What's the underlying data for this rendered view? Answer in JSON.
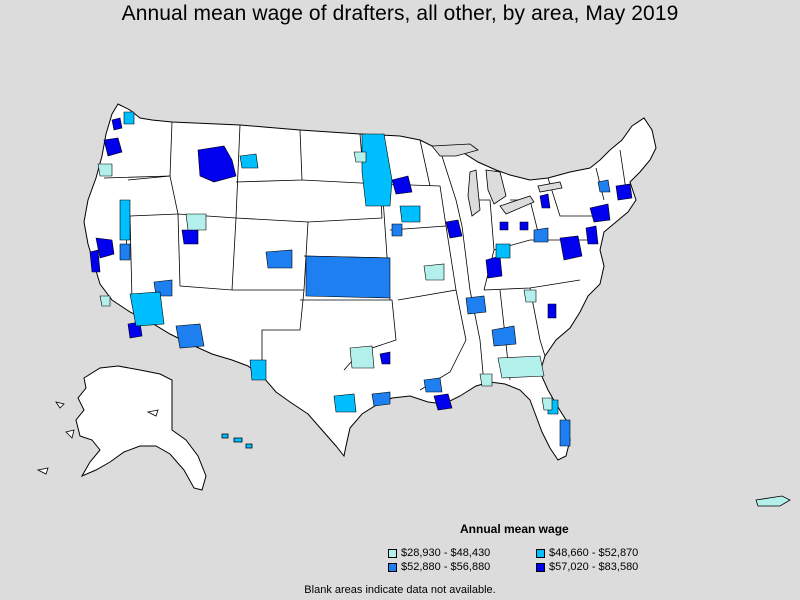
{
  "title": "Annual mean wage of drafters, all other, by area, May 2019",
  "legend": {
    "title": "Annual mean wage",
    "items": [
      {
        "label": "$28,930 - $48,430",
        "color": "#b3f0ec"
      },
      {
        "label": "$48,660 - $52,870",
        "color": "#00bfff"
      },
      {
        "label": "$52,880 - $56,880",
        "color": "#1e7ff0"
      },
      {
        "label": "$57,020 - $83,580",
        "color": "#0000ee"
      }
    ]
  },
  "footnote": "Blank areas indicate data not available.",
  "colors": {
    "background": "#dcdcdc",
    "land": "#ffffff",
    "border": "#000000"
  }
}
